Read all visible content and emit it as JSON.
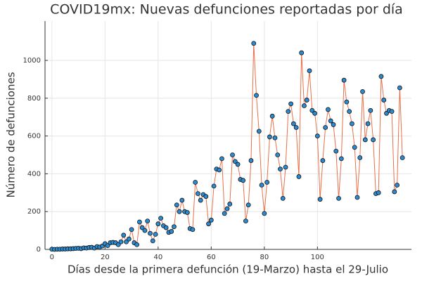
{
  "chart_data": {
    "type": "line_scatter",
    "title": "COVID19mx: Nuevas defunciones reportadas por día",
    "x_label": "Días desde la primera defunción (19-Marzo) hasta el 29-Julio",
    "y_label": "Número de defunciones",
    "x": [
      0,
      1,
      2,
      3,
      4,
      5,
      6,
      7,
      8,
      9,
      10,
      11,
      12,
      13,
      14,
      15,
      16,
      17,
      18,
      19,
      20,
      21,
      22,
      23,
      24,
      25,
      26,
      27,
      28,
      29,
      30,
      31,
      32,
      33,
      34,
      35,
      36,
      37,
      38,
      39,
      40,
      41,
      42,
      43,
      44,
      45,
      46,
      47,
      48,
      49,
      50,
      51,
      52,
      53,
      54,
      55,
      56,
      57,
      58,
      59,
      60,
      61,
      62,
      63,
      64,
      65,
      66,
      67,
      68,
      69,
      70,
      71,
      72,
      73,
      74,
      75,
      76,
      77,
      78,
      79,
      80,
      81,
      82,
      83,
      84,
      85,
      86,
      87,
      88,
      89,
      90,
      91,
      92,
      93,
      94,
      95,
      96,
      97,
      98,
      99,
      100,
      101,
      102,
      103,
      104,
      105,
      106,
      107,
      108,
      109,
      110,
      111,
      112,
      113,
      114,
      115,
      116,
      117,
      118,
      119,
      120,
      121,
      122,
      123,
      124,
      125,
      126,
      127,
      128,
      129,
      130,
      131,
      132
    ],
    "series": [
      {
        "line_color": "#e8704a",
        "marker_color": "#2b8bd0",
        "values": [
          1,
          0,
          1,
          1,
          2,
          2,
          3,
          3,
          4,
          5,
          6,
          4,
          8,
          7,
          10,
          11,
          7,
          15,
          12,
          18,
          30,
          20,
          35,
          37,
          35,
          25,
          40,
          75,
          40,
          55,
          105,
          35,
          25,
          145,
          115,
          100,
          150,
          85,
          45,
          80,
          135,
          165,
          125,
          115,
          90,
          95,
          120,
          235,
          200,
          260,
          200,
          195,
          110,
          105,
          355,
          295,
          260,
          290,
          280,
          135,
          155,
          335,
          425,
          420,
          480,
          190,
          215,
          240,
          500,
          465,
          450,
          370,
          365,
          150,
          235,
          470,
          1090,
          815,
          625,
          340,
          190,
          355,
          595,
          705,
          590,
          500,
          425,
          270,
          435,
          730,
          770,
          665,
          645,
          385,
          1040,
          760,
          790,
          945,
          735,
          720,
          600,
          265,
          470,
          645,
          740,
          680,
          660,
          520,
          270,
          480,
          895,
          780,
          730,
          665,
          540,
          275,
          485,
          835,
          580,
          665,
          735,
          580,
          295,
          300,
          915,
          790,
          720,
          735,
          730,
          305,
          340,
          855,
          485
        ]
      }
    ],
    "xlim": [
      -2.6,
      135.4
    ],
    "ylim": [
      0,
      1208
    ],
    "xticks": [
      0,
      20,
      40,
      60,
      80,
      100
    ],
    "yticks": [
      0,
      200,
      400,
      600,
      800,
      1000
    ],
    "grid": true
  }
}
